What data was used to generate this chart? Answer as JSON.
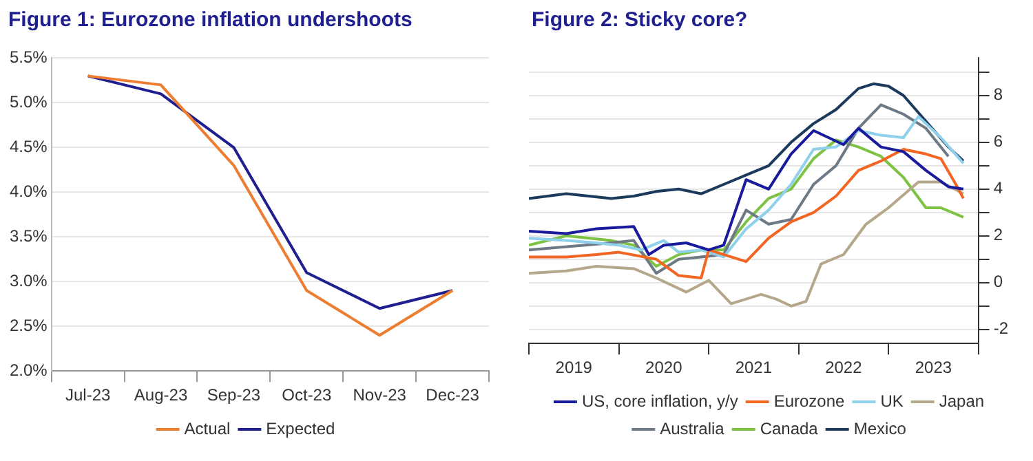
{
  "chart_data": [
    {
      "type": "line",
      "title": "Figure 1: Eurozone inflation undershoots",
      "categories": [
        "Jul-23",
        "Aug-23",
        "Sep-23",
        "Oct-23",
        "Nov-23",
        "Dec-23"
      ],
      "series": [
        {
          "name": "Actual",
          "color": "#ed7d31",
          "values": [
            5.3,
            5.2,
            4.3,
            2.9,
            2.4,
            2.9
          ]
        },
        {
          "name": "Expected",
          "color": "#1f1f8f",
          "values": [
            5.3,
            5.1,
            4.5,
            3.1,
            2.7,
            2.9
          ]
        }
      ],
      "ylim": [
        2.0,
        5.5
      ],
      "yticks": [
        {
          "value": 2.0,
          "label": "2.0%"
        },
        {
          "value": 2.5,
          "label": "2.5%"
        },
        {
          "value": 3.0,
          "label": "3.0%"
        },
        {
          "value": 3.5,
          "label": "3.5%"
        },
        {
          "value": 4.0,
          "label": "4.0%"
        },
        {
          "value": 4.5,
          "label": "4.5%"
        },
        {
          "value": 5.0,
          "label": "5.0%"
        },
        {
          "value": 5.5,
          "label": "5.5%"
        }
      ],
      "grid": "y",
      "legend": "bottom",
      "marker": "none",
      "line_style": "solid"
    },
    {
      "type": "line",
      "title": "Figure 2: Sticky core?",
      "series": [
        {
          "name": "US, core inflation, y/y",
          "color": "#1a1a9c",
          "x": [
            "2019-01",
            "2019-06",
            "2019-10",
            "2020-03",
            "2020-05",
            "2020-07",
            "2020-10",
            "2021-01",
            "2021-03",
            "2021-06",
            "2021-09",
            "2021-12",
            "2022-03",
            "2022-05",
            "2022-07",
            "2022-09",
            "2022-12",
            "2023-03",
            "2023-06",
            "2023-09",
            "2023-11"
          ],
          "values": [
            2.2,
            2.1,
            2.3,
            2.4,
            1.2,
            1.6,
            1.7,
            1.4,
            1.6,
            4.4,
            4.0,
            5.5,
            6.5,
            6.2,
            5.9,
            6.6,
            5.8,
            5.6,
            4.8,
            4.1,
            4.0
          ]
        },
        {
          "name": "Eurozone",
          "color": "#f26522",
          "x": [
            "2019-01",
            "2019-06",
            "2019-10",
            "2020-01",
            "2020-06",
            "2020-09",
            "2020-12",
            "2021-01",
            "2021-06",
            "2021-09",
            "2021-12",
            "2022-03",
            "2022-06",
            "2022-09",
            "2022-12",
            "2023-03",
            "2023-06",
            "2023-08",
            "2023-10",
            "2023-11"
          ],
          "values": [
            1.1,
            1.1,
            1.2,
            1.3,
            1.0,
            0.3,
            0.2,
            1.4,
            0.9,
            1.9,
            2.6,
            3.0,
            3.7,
            4.8,
            5.2,
            5.7,
            5.5,
            5.3,
            4.2,
            3.6
          ]
        },
        {
          "name": "UK",
          "color": "#8fd0ea",
          "x": [
            "2019-01",
            "2019-06",
            "2019-10",
            "2020-01",
            "2020-04",
            "2020-07",
            "2020-09",
            "2020-12",
            "2021-03",
            "2021-06",
            "2021-09",
            "2021-12",
            "2022-03",
            "2022-06",
            "2022-09",
            "2022-12",
            "2023-03",
            "2023-05",
            "2023-08",
            "2023-11"
          ],
          "values": [
            1.9,
            1.8,
            1.7,
            1.6,
            1.4,
            1.8,
            1.3,
            1.4,
            1.1,
            2.3,
            3.1,
            4.2,
            5.7,
            5.8,
            6.5,
            6.3,
            6.2,
            7.1,
            6.2,
            5.1
          ]
        },
        {
          "name": "Japan",
          "color": "#b5a88a",
          "x": [
            "2019-01",
            "2019-06",
            "2019-10",
            "2020-03",
            "2020-06",
            "2020-10",
            "2021-01",
            "2021-04",
            "2021-08",
            "2021-10",
            "2021-12",
            "2022-02",
            "2022-04",
            "2022-07",
            "2022-10",
            "2023-01",
            "2023-05",
            "2023-08",
            "2023-11"
          ],
          "values": [
            0.4,
            0.5,
            0.7,
            0.6,
            0.2,
            -0.4,
            0.1,
            -0.9,
            -0.5,
            -0.7,
            -1.0,
            -0.8,
            0.8,
            1.2,
            2.5,
            3.2,
            4.3,
            4.3,
            3.8
          ]
        },
        {
          "name": "Australia",
          "color": "#6d7a85",
          "x": [
            "2019-01",
            "2019-12",
            "2020-03",
            "2020-06",
            "2020-09",
            "2021-03",
            "2021-06",
            "2021-09",
            "2021-12",
            "2022-03",
            "2022-06",
            "2022-09",
            "2022-12",
            "2023-03",
            "2023-06",
            "2023-09"
          ],
          "values": [
            1.4,
            1.7,
            1.8,
            0.4,
            1.0,
            1.2,
            3.1,
            2.5,
            2.7,
            4.2,
            5.0,
            6.6,
            7.6,
            7.2,
            6.6,
            5.4
          ]
        },
        {
          "name": "Canada",
          "color": "#7dc242",
          "x": [
            "2019-01",
            "2019-06",
            "2019-12",
            "2020-03",
            "2020-06",
            "2020-09",
            "2020-12",
            "2021-03",
            "2021-06",
            "2021-09",
            "2021-12",
            "2022-03",
            "2022-06",
            "2022-09",
            "2022-12",
            "2023-03",
            "2023-06",
            "2023-08",
            "2023-11"
          ],
          "values": [
            1.6,
            2.0,
            1.8,
            1.6,
            0.7,
            1.2,
            1.4,
            1.4,
            2.6,
            3.6,
            4.0,
            5.3,
            6.1,
            5.8,
            5.4,
            4.5,
            3.2,
            3.2,
            2.8
          ]
        },
        {
          "name": "Mexico",
          "color": "#1b3a5c",
          "x": [
            "2019-01",
            "2019-06",
            "2019-12",
            "2020-03",
            "2020-06",
            "2020-09",
            "2020-12",
            "2021-03",
            "2021-06",
            "2021-09",
            "2021-12",
            "2022-03",
            "2022-06",
            "2022-09",
            "2022-11",
            "2023-01",
            "2023-03",
            "2023-06",
            "2023-09",
            "2023-11"
          ],
          "values": [
            3.6,
            3.8,
            3.6,
            3.7,
            3.9,
            4.0,
            3.8,
            4.2,
            4.6,
            5.0,
            6.0,
            6.8,
            7.4,
            8.3,
            8.5,
            8.4,
            8.0,
            6.9,
            5.8,
            5.2
          ]
        }
      ],
      "xlim": [
        "2019-01",
        "2024-01"
      ],
      "xticks": [
        {
          "value": "2019-01",
          "label": null
        },
        {
          "value": "2019-07",
          "label": "2019"
        },
        {
          "value": "2020-01",
          "label": null
        },
        {
          "value": "2020-07",
          "label": "2020"
        },
        {
          "value": "2021-01",
          "label": null
        },
        {
          "value": "2021-07",
          "label": "2021"
        },
        {
          "value": "2022-01",
          "label": null
        },
        {
          "value": "2022-07",
          "label": "2022"
        },
        {
          "value": "2023-01",
          "label": null
        },
        {
          "value": "2023-07",
          "label": "2023"
        },
        {
          "value": "2024-01",
          "label": null
        }
      ],
      "ylim": [
        -2.6,
        9.6
      ],
      "yticks": [
        {
          "value": -2,
          "label": "-2"
        },
        {
          "value": -1,
          "label": null
        },
        0,
        {
          "value": 1,
          "label": null
        },
        2,
        {
          "value": 3,
          "label": null
        },
        4,
        {
          "value": 5,
          "label": null
        },
        6,
        {
          "value": 7,
          "label": null
        },
        8,
        {
          "value": 9,
          "label": null
        }
      ],
      "grid": "y",
      "legend": "bottom",
      "marker": "none",
      "line_style": "solid"
    }
  ]
}
